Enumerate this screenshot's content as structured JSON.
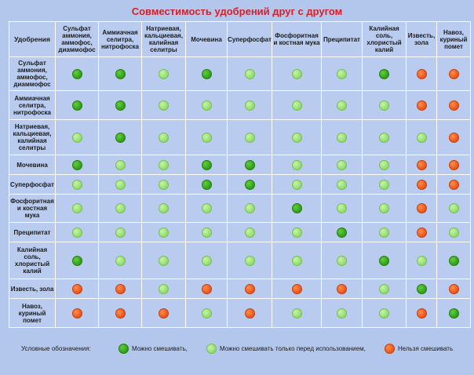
{
  "title": "Совместимость удобрений друг с другом",
  "corner_label": "Удобрения",
  "columns": [
    "Сульфат аммония, аммофос, диаммофос",
    "Аммиачная селитра, нитрофоска",
    "Натриевая, кальциевая, калийная селитры",
    "Мочевина",
    "Суперфосфат",
    "Фосфоритная и костная мука",
    "Преципитат",
    "Калийная соль, хлористый калий",
    "Известь, зола",
    "Навоз, куриный помет"
  ],
  "rows": [
    {
      "label": "Сульфат аммония, аммофос, диаммофос",
      "cells": [
        "g",
        "g",
        "l",
        "g",
        "l",
        "l",
        "l",
        "g",
        "o",
        "o"
      ]
    },
    {
      "label": "Аммиачная селитра, нитрофоска",
      "cells": [
        "g",
        "g",
        "l",
        "l",
        "l",
        "l",
        "l",
        "l",
        "o",
        "o"
      ]
    },
    {
      "label": "Натриевая, кальциевая, калийная селитры",
      "cells": [
        "l",
        "g",
        "l",
        "l",
        "l",
        "l",
        "l",
        "l",
        "l",
        "o"
      ]
    },
    {
      "label": "Мочевина",
      "cells": [
        "g",
        "l",
        "l",
        "g",
        "g",
        "l",
        "l",
        "l",
        "o",
        "o"
      ]
    },
    {
      "label": "Суперфосфат",
      "cells": [
        "l",
        "l",
        "l",
        "g",
        "g",
        "l",
        "l",
        "l",
        "o",
        "o"
      ]
    },
    {
      "label": "Фосфоритная и костная мука",
      "cells": [
        "l",
        "l",
        "l",
        "l",
        "l",
        "g",
        "l",
        "l",
        "o",
        "l"
      ]
    },
    {
      "label": "Преципитат",
      "cells": [
        "l",
        "l",
        "l",
        "l",
        "l",
        "l",
        "g",
        "l",
        "o",
        "l"
      ]
    },
    {
      "label": "Калийная соль, хлористый калий",
      "cells": [
        "g",
        "l",
        "l",
        "l",
        "l",
        "l",
        "l",
        "g",
        "l",
        "g"
      ]
    },
    {
      "label": "Известь, зола",
      "cells": [
        "o",
        "o",
        "l",
        "o",
        "o",
        "o",
        "o",
        "l",
        "g",
        "o"
      ]
    },
    {
      "label": "Навоз, куриный помет",
      "cells": [
        "o",
        "o",
        "o",
        "l",
        "o",
        "l",
        "l",
        "l",
        "o",
        "g"
      ]
    }
  ],
  "legend": {
    "label": "Условные обозначения:",
    "compatible": "Можно смешивать,",
    "before_use": "Можно смешивать только перед использованием,",
    "incompatible": "Нельзя смешивать"
  },
  "colors": {
    "compatible": "#2f9d17",
    "before_use": "#8edb6a",
    "incompatible": "#e8531a"
  }
}
